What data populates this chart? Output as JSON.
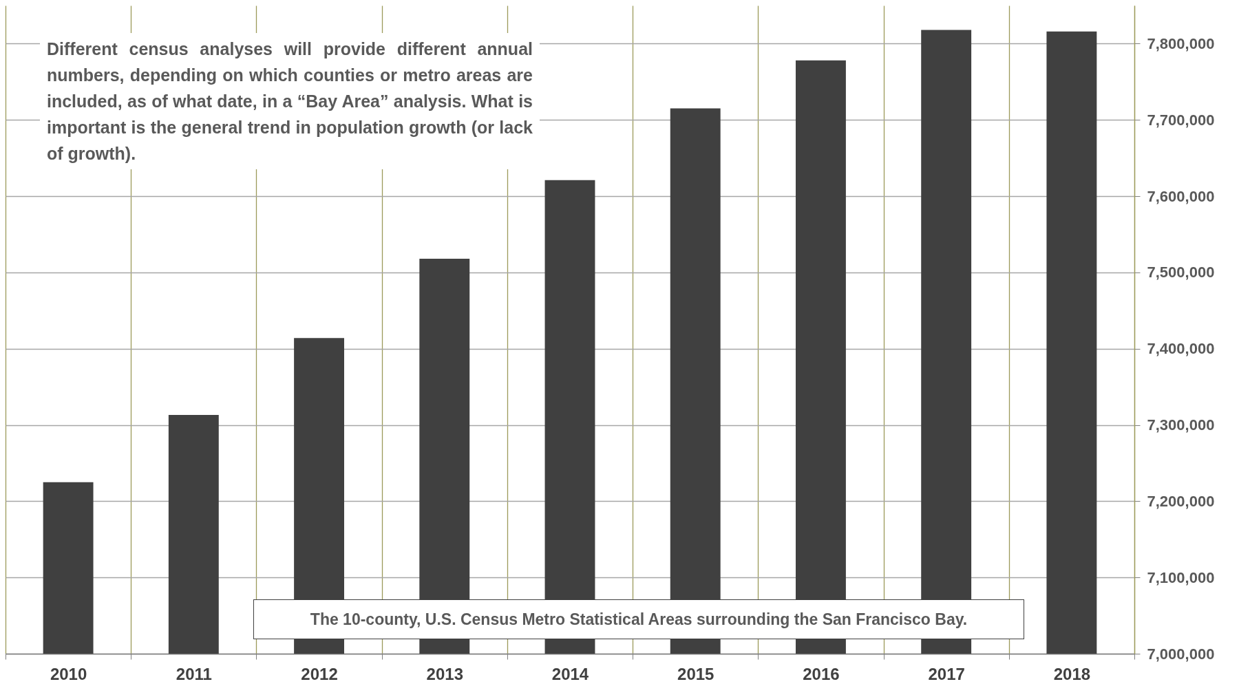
{
  "chart_data": {
    "type": "bar",
    "categories": [
      "2010",
      "2011",
      "2012",
      "2013",
      "2014",
      "2015",
      "2016",
      "2017",
      "2018"
    ],
    "values": [
      7225000,
      7313000,
      7414000,
      7518000,
      7621000,
      7715000,
      7778000,
      7818000,
      7816000
    ],
    "color": "#404040",
    "ylim": [
      7000000,
      7850000
    ],
    "yticks": [
      {
        "value": 7000000,
        "label": "7,000,000"
      },
      {
        "value": 7100000,
        "label": "7,100,000"
      },
      {
        "value": 7200000,
        "label": "7,200,000"
      },
      {
        "value": 7300000,
        "label": "7,300,000"
      },
      {
        "value": 7400000,
        "label": "7,400,000"
      },
      {
        "value": 7500000,
        "label": "7,500,000"
      },
      {
        "value": 7600000,
        "label": "7,600,000"
      },
      {
        "value": 7700000,
        "label": "7,700,000"
      },
      {
        "value": 7800000,
        "label": "7,800,000"
      }
    ],
    "grid": true,
    "annotations": [
      "Different census analyses will provide different annual numbers, depending on which counties or metro areas are included, as of what date, in a “Bay Area” analysis. What is important is the general trend in population growth (or lack of growth).",
      "The 10-county, U.S. Census Metro Statistical Areas surrounding the San Francisco Bay."
    ]
  }
}
